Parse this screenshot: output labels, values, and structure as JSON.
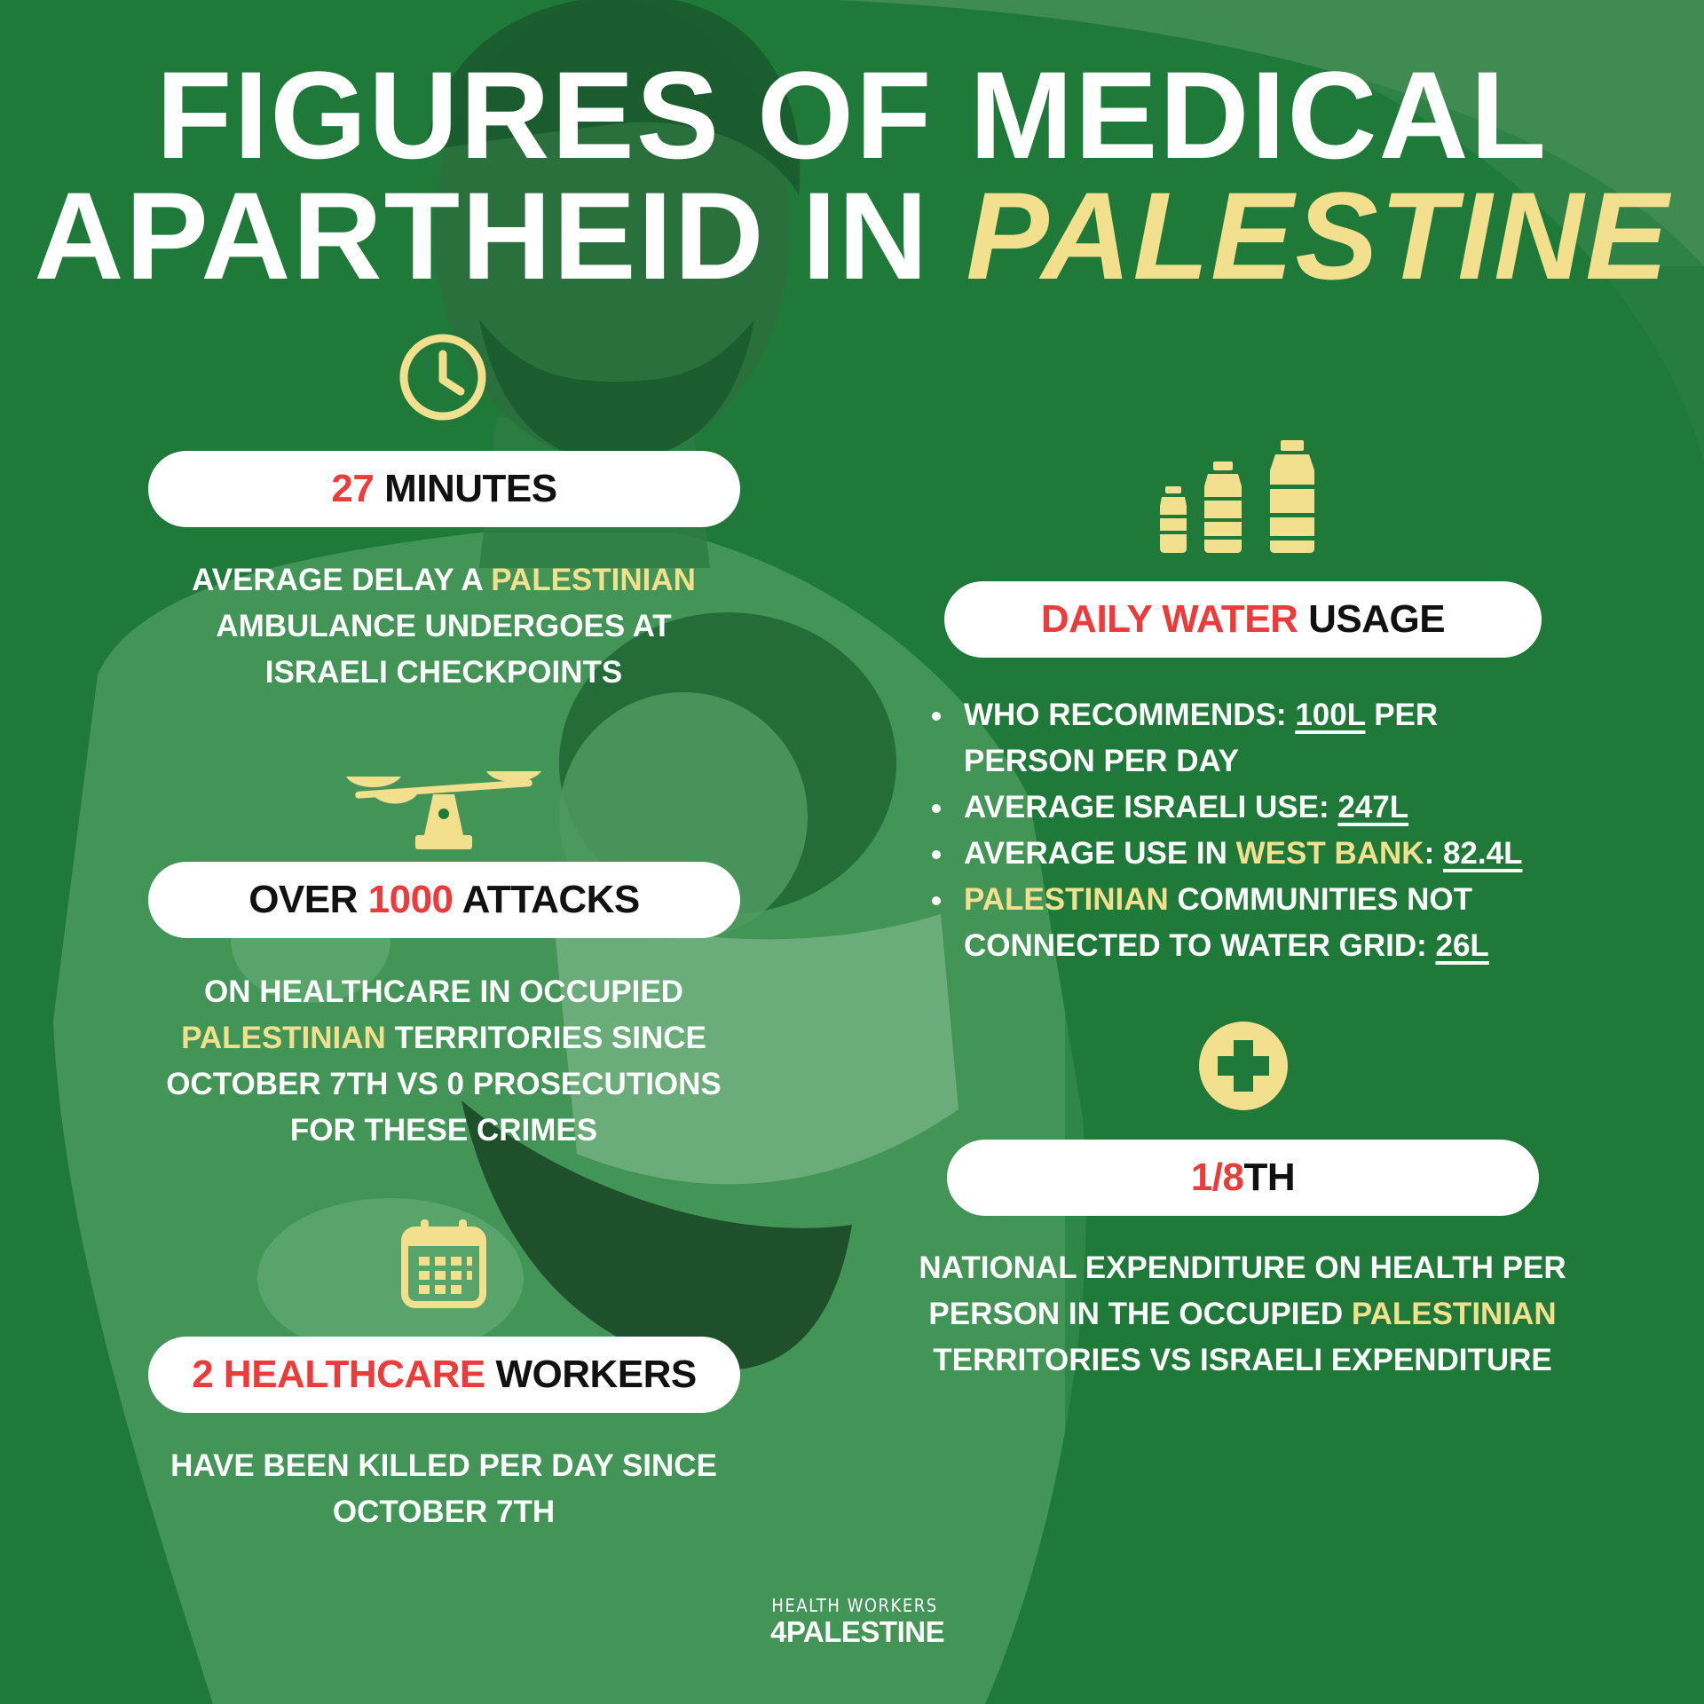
{
  "title": {
    "line1": "FIGURES OF MEDICAL",
    "line2_prefix": "APARTHEID IN ",
    "line2_highlight": "PALESTINE"
  },
  "colors": {
    "background": "#1f7a3a",
    "highlight_yellow": "#f3e08e",
    "accent_red": "#ec3b3b",
    "pill_bg": "#ffffff"
  },
  "icons": {
    "clock": "clock-icon",
    "scale": "balance-scale-icon",
    "calendar": "calendar-icon",
    "bottles": "water-bottles-icon",
    "plus": "medical-plus-icon"
  },
  "stat_minutes": {
    "number": "27",
    "label": " MINUTES",
    "desc_1": "AVERAGE DELAY A ",
    "desc_hl": "PALESTINIAN",
    "desc_2": "AMBULANCE UNDERGOES AT",
    "desc_3": "ISRAELI CHECKPOINTS"
  },
  "stat_attacks": {
    "prefix": "OVER ",
    "number": "1000",
    "label": " ATTACKS",
    "desc_1": "ON HEALTHCARE IN OCCUPIED",
    "desc_hl": "PALESTINIAN",
    "desc_2": " TERRITORIES SINCE",
    "desc_3": "OCTOBER 7TH VS 0 PROSECUTIONS",
    "desc_4": "FOR THESE CRIMES"
  },
  "stat_workers": {
    "number": "2 HEALTHCARE",
    "label": " WORKERS",
    "desc_1": "HAVE BEEN KILLED PER DAY SINCE",
    "desc_2": "OCTOBER 7TH"
  },
  "stat_water": {
    "title_red": "DAILY WATER",
    "title_rest": " USAGE",
    "b1_text": "WHO RECOMMENDS: ",
    "b1_value": "100L",
    "b1_rest": " PER",
    "b1_line2": "PERSON PER DAY",
    "b2_text": "AVERAGE ISRAELI USE: ",
    "b2_value": "247L",
    "b3_text": "AVERAGE USE IN ",
    "b3_hl": "WEST BANK",
    "b3_colon": ": ",
    "b3_value": "82.4L",
    "b4_hl": "PALESTINIAN",
    "b4_text": " COMMUNITIES NOT",
    "b4_line2": "CONNECTED TO WATER GRID: ",
    "b4_value": "26L"
  },
  "stat_expenditure": {
    "number": "1/8",
    "label": "TH",
    "desc_1": "NATIONAL EXPENDITURE ON HEALTH PER",
    "desc_2": "PERSON IN THE OCCUPIED ",
    "desc_hl": "PALESTINIAN",
    "desc_3": "TERRITORIES VS ISRAELI EXPENDITURE"
  },
  "footer": {
    "line1": "HEALTH WORKERS",
    "line2": "4PALESTINE"
  }
}
